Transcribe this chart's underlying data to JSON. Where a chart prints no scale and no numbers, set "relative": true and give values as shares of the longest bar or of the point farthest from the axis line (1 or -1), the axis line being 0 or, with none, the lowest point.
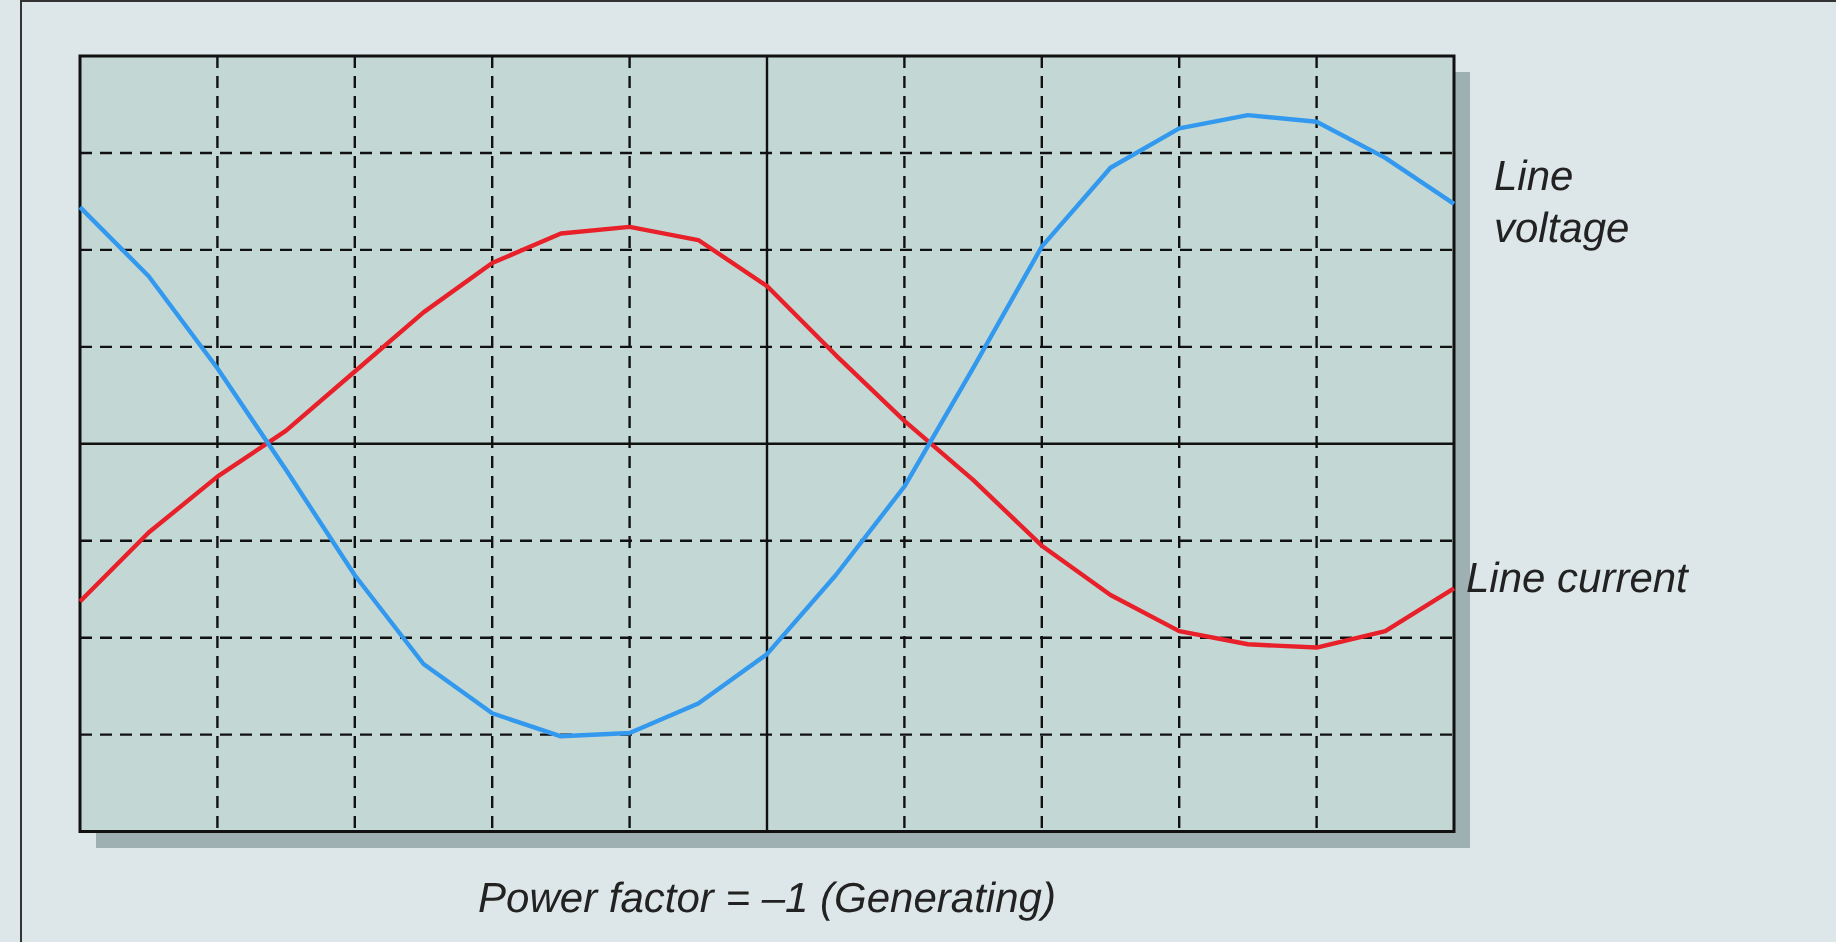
{
  "chart_data": {
    "type": "line",
    "xlabel": "Power factor = –1 (Generating)",
    "relative": true,
    "categories": [
      null,
      null,
      null,
      null,
      null,
      null,
      null,
      null,
      null,
      null,
      null,
      null,
      null,
      null,
      null,
      null,
      null,
      null,
      null,
      null,
      null
    ],
    "tick_labels": false,
    "grid": true,
    "legend": false,
    "marker": "none",
    "line_style": "solid",
    "series": [
      {
        "name": "Line voltage",
        "color": "#3399ee",
        "values": [
          0.72,
          0.51,
          0.23,
          -0.08,
          -0.4,
          -0.67,
          -0.82,
          -0.89,
          -0.88,
          -0.79,
          -0.64,
          -0.4,
          -0.13,
          0.23,
          0.6,
          0.84,
          0.96,
          1.0,
          0.98,
          0.87,
          0.73
        ]
      },
      {
        "name": "Line current",
        "color": "#e8202a",
        "values": [
          -0.48,
          -0.27,
          -0.1,
          0.04,
          0.22,
          0.4,
          0.55,
          0.64,
          0.66,
          0.62,
          0.48,
          0.27,
          0.07,
          -0.11,
          -0.31,
          -0.46,
          -0.57,
          -0.61,
          -0.62,
          -0.57,
          -0.44
        ]
      }
    ]
  }
}
